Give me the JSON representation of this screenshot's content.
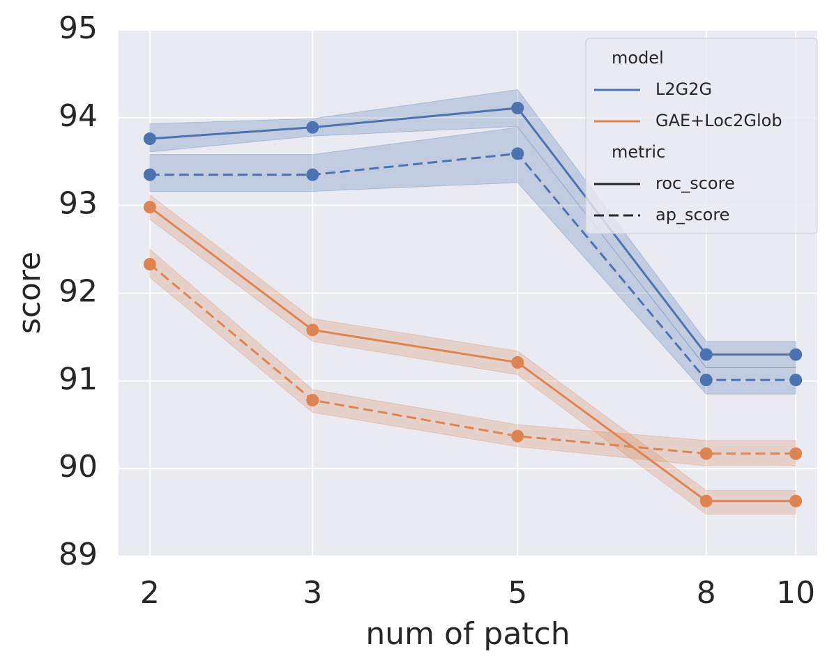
{
  "chart_data": {
    "type": "line",
    "x_label": "num of patch",
    "y_label": "score",
    "x": [
      2,
      3,
      5,
      8,
      10
    ],
    "x_log": true,
    "xlim": [
      1.85,
      10.55
    ],
    "xticks": [
      2,
      3,
      5,
      8,
      10
    ],
    "ylim": [
      89,
      95
    ],
    "yticks": [
      89,
      90,
      91,
      92,
      93,
      94,
      95
    ],
    "grid": true,
    "legend_position": "upper right",
    "legend": {
      "model_title": "model",
      "models": [
        {
          "name": "L2G2G",
          "color": "#4c72b0"
        },
        {
          "name": "GAE+Loc2Glob",
          "color": "#dd8452"
        }
      ],
      "metric_title": "metric",
      "metrics": [
        {
          "name": "roc_score",
          "dashed": false
        },
        {
          "name": "ap_score",
          "dashed": true
        }
      ]
    },
    "series": [
      {
        "model": "L2G2G",
        "metric": "roc_score",
        "color": "#4c72b0",
        "dashed": false,
        "values": [
          93.76,
          93.89,
          94.11,
          91.3,
          91.3
        ],
        "lower": [
          93.61,
          93.79,
          93.9,
          91.15,
          91.15
        ],
        "upper": [
          93.93,
          93.99,
          94.32,
          91.45,
          91.45
        ]
      },
      {
        "model": "L2G2G",
        "metric": "ap_score",
        "color": "#4c72b0",
        "dashed": true,
        "values": [
          93.35,
          93.35,
          93.59,
          91.01,
          91.01
        ],
        "lower": [
          93.16,
          93.16,
          93.26,
          90.85,
          90.85
        ],
        "upper": [
          93.58,
          93.58,
          93.89,
          91.15,
          91.15
        ]
      },
      {
        "model": "GAE+Loc2Glob",
        "metric": "roc_score",
        "color": "#dd8452",
        "dashed": false,
        "values": [
          92.98,
          91.58,
          91.21,
          89.63,
          89.63
        ],
        "lower": [
          92.84,
          91.45,
          91.07,
          89.48,
          89.48
        ],
        "upper": [
          93.12,
          91.71,
          91.34,
          89.75,
          89.75
        ]
      },
      {
        "model": "GAE+Loc2Glob",
        "metric": "ap_score",
        "color": "#dd8452",
        "dashed": true,
        "values": [
          92.33,
          90.78,
          90.37,
          90.17,
          90.17
        ],
        "lower": [
          92.18,
          90.64,
          90.25,
          90.03,
          90.03
        ],
        "upper": [
          92.5,
          90.9,
          90.5,
          90.32,
          90.32
        ]
      }
    ]
  }
}
